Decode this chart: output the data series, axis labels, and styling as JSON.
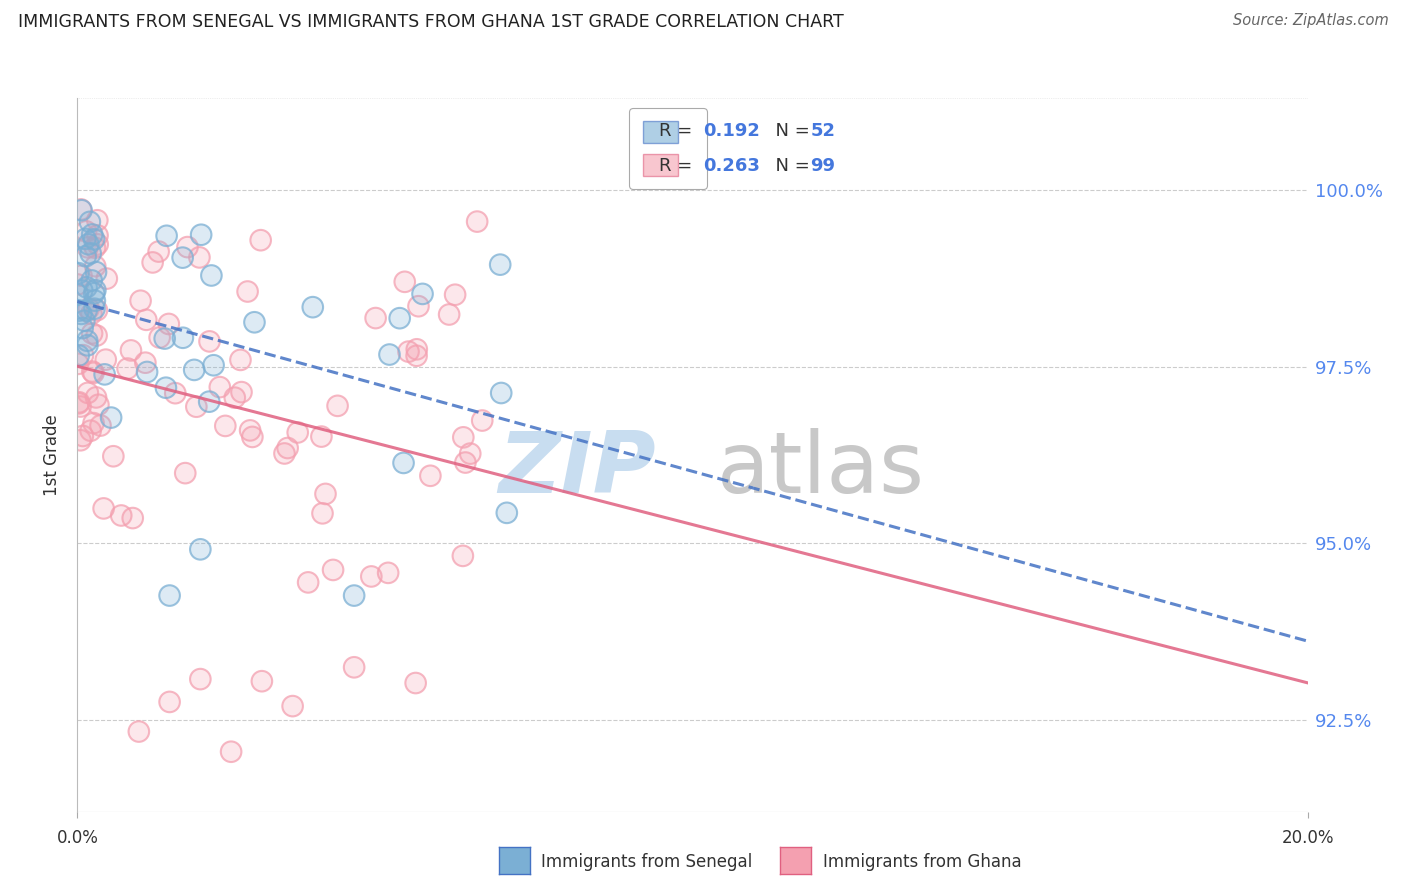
{
  "title": "IMMIGRANTS FROM SENEGAL VS IMMIGRANTS FROM GHANA 1ST GRADE CORRELATION CHART",
  "source": "Source: ZipAtlas.com",
  "ylabel": "1st Grade",
  "ytick_values": [
    92.5,
    95.0,
    97.5,
    100.0
  ],
  "xlim": [
    0.0,
    20.0
  ],
  "ylim": [
    91.2,
    101.3
  ],
  "legend_senegal": "Immigrants from Senegal",
  "legend_ghana": "Immigrants from Ghana",
  "R_senegal": 0.192,
  "N_senegal": 52,
  "R_ghana": 0.263,
  "N_ghana": 99,
  "senegal_color": "#7BAFD4",
  "ghana_color": "#F4A0B0",
  "senegal_line_color": "#4472C4",
  "ghana_line_color": "#E06080",
  "background_color": "#FFFFFF",
  "watermark_zip_color": "#C8DDF0",
  "watermark_atlas_color": "#C8C8C8"
}
